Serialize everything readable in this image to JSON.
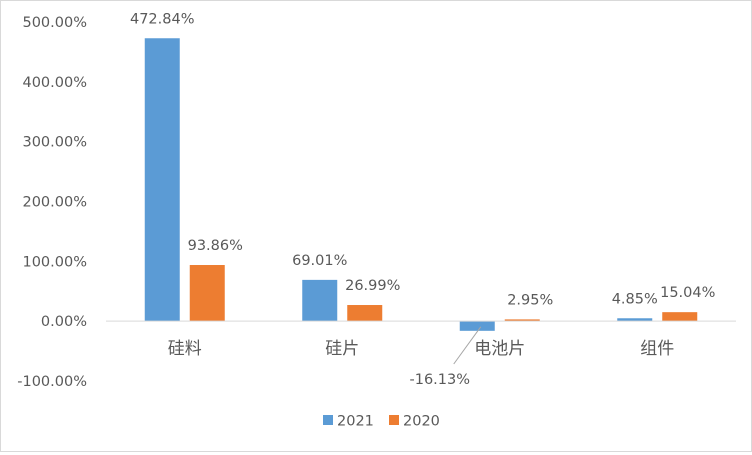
{
  "chart_data": {
    "type": "bar",
    "categories": [
      "硅料",
      "硅片",
      "电池片",
      "组件"
    ],
    "series": [
      {
        "name": "2021",
        "values": [
          472.84,
          69.01,
          -16.13,
          4.85
        ],
        "labels": [
          "472.84%",
          "69.01%",
          "-16.13%",
          "4.85%"
        ],
        "color": "#5B9BD5"
      },
      {
        "name": "2020",
        "values": [
          93.86,
          26.99,
          2.95,
          15.04
        ],
        "labels": [
          "93.86%",
          "26.99%",
          "2.95%",
          "15.04%"
        ],
        "color": "#ED7D31"
      }
    ],
    "ylim": [
      -100,
      500
    ],
    "yticks": [
      -100,
      0,
      100,
      200,
      300,
      400,
      500
    ],
    "ytick_labels": [
      "-100.00%",
      "0.00%",
      "100.00%",
      "200.00%",
      "300.00%",
      "400.00%",
      "500.00%"
    ],
    "grid": false,
    "legend_position": "bottom",
    "axis_color": "#d9d9d9",
    "leader_line_color": "#a6a6a6"
  }
}
